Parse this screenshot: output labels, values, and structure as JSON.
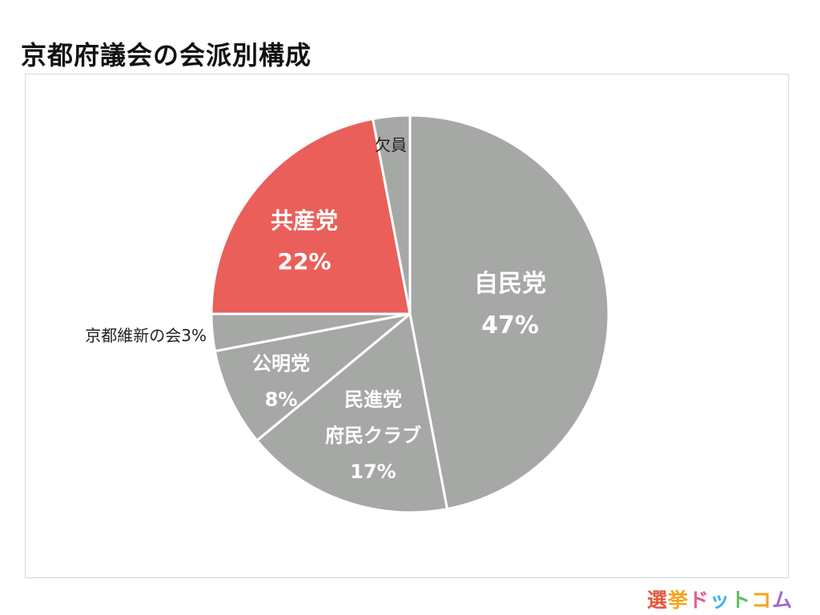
{
  "title": "京都府議会の会派別構成",
  "chart_data": {
    "type": "pie",
    "title": "京都府議会の会派別構成",
    "slices": [
      {
        "label": "自民党",
        "percent_label": "47%",
        "value": 47,
        "color": "#a6a8a6",
        "label_style": "inside"
      },
      {
        "label": "民進党\n府民クラブ",
        "percent_label": "17%",
        "value": 17,
        "color": "#a6a8a6",
        "label_style": "inside"
      },
      {
        "label": "公明党",
        "percent_label": "8%",
        "value": 8,
        "color": "#a6a8a6",
        "label_style": "inside"
      },
      {
        "label": "京都維新の会",
        "percent_label": "3%",
        "value": 3,
        "color": "#a6a8a6",
        "label_style": "outside"
      },
      {
        "label": "共産党",
        "percent_label": "22%",
        "value": 22,
        "color": "#ea5f5a",
        "label_style": "inside"
      },
      {
        "label": "欠員",
        "percent_label": "",
        "value": 3,
        "color": "#a6a8a6",
        "label_style": "outside"
      }
    ],
    "start_at": "top",
    "direction": "clockwise",
    "legend": "none"
  },
  "logo": {
    "text": "選挙ドットコム",
    "chars": [
      {
        "ch": "選",
        "color": "#e8573f"
      },
      {
        "ch": "挙",
        "color": "#f2a51d"
      },
      {
        "ch": "ド",
        "color": "#e85a8f"
      },
      {
        "ch": "ッ",
        "color": "#3fb3e6"
      },
      {
        "ch": "ト",
        "color": "#5cbf5a"
      },
      {
        "ch": "コ",
        "color": "#f2a51d"
      },
      {
        "ch": "ム",
        "color": "#9b6bd3"
      }
    ]
  }
}
